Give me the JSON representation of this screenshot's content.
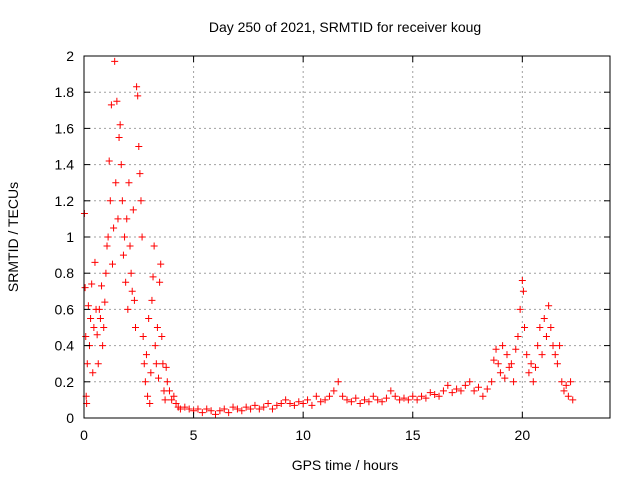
{
  "chart_data": {
    "type": "scatter",
    "title": "Day 250 of 2021, SRMTID for receiver koug",
    "xlabel": "GPS time / hours",
    "ylabel": "SRMTID / TECUs",
    "xlim": [
      0,
      24
    ],
    "ylim": [
      0,
      2
    ],
    "x_ticks": [
      0,
      5,
      10,
      15,
      20
    ],
    "x_tick_labels": [
      "0",
      "5",
      "10",
      "15",
      "20"
    ],
    "y_ticks": [
      0,
      0.2,
      0.4,
      0.6,
      0.8,
      1,
      1.2,
      1.4,
      1.6,
      1.8,
      2
    ],
    "y_tick_labels": [
      "0",
      "0.2",
      "0.4",
      "0.6",
      "0.8",
      "1",
      "1.2",
      "1.4",
      "1.6",
      "1.8",
      "2"
    ],
    "grid": true,
    "marker": "+",
    "color": "#ff0000",
    "series": [
      {
        "name": "SRMTID",
        "points": [
          [
            0.02,
            1.13
          ],
          [
            0.05,
            0.72
          ],
          [
            0.08,
            0.45
          ],
          [
            0.1,
            0.12
          ],
          [
            0.12,
            0.08
          ],
          [
            0.15,
            0.3
          ],
          [
            0.2,
            0.62
          ],
          [
            0.25,
            0.4
          ],
          [
            0.3,
            0.55
          ],
          [
            0.35,
            0.74
          ],
          [
            0.4,
            0.25
          ],
          [
            0.45,
            0.5
          ],
          [
            0.5,
            0.86
          ],
          [
            0.55,
            0.6
          ],
          [
            0.6,
            0.46
          ],
          [
            0.65,
            0.3
          ],
          [
            0.7,
            0.6
          ],
          [
            0.75,
            0.55
          ],
          [
            0.8,
            0.73
          ],
          [
            0.85,
            0.4
          ],
          [
            0.9,
            0.5
          ],
          [
            0.95,
            0.64
          ],
          [
            1.0,
            0.8
          ],
          [
            1.05,
            0.95
          ],
          [
            1.1,
            1.0
          ],
          [
            1.15,
            1.42
          ],
          [
            1.2,
            1.2
          ],
          [
            1.25,
            1.73
          ],
          [
            1.3,
            0.85
          ],
          [
            1.35,
            1.05
          ],
          [
            1.4,
            1.97
          ],
          [
            1.45,
            1.3
          ],
          [
            1.5,
            1.75
          ],
          [
            1.55,
            1.1
          ],
          [
            1.6,
            1.55
          ],
          [
            1.65,
            1.62
          ],
          [
            1.7,
            1.4
          ],
          [
            1.75,
            1.2
          ],
          [
            1.8,
            0.9
          ],
          [
            1.85,
            1.0
          ],
          [
            1.9,
            0.75
          ],
          [
            1.95,
            1.1
          ],
          [
            2.0,
            0.6
          ],
          [
            2.05,
            1.3
          ],
          [
            2.1,
            0.95
          ],
          [
            2.15,
            0.8
          ],
          [
            2.2,
            0.7
          ],
          [
            2.25,
            1.15
          ],
          [
            2.3,
            0.65
          ],
          [
            2.35,
            0.5
          ],
          [
            2.4,
            1.83
          ],
          [
            2.45,
            1.78
          ],
          [
            2.5,
            1.5
          ],
          [
            2.55,
            1.35
          ],
          [
            2.6,
            1.2
          ],
          [
            2.65,
            1.0
          ],
          [
            2.7,
            0.45
          ],
          [
            2.75,
            0.3
          ],
          [
            2.8,
            0.2
          ],
          [
            2.85,
            0.35
          ],
          [
            2.9,
            0.12
          ],
          [
            2.95,
            0.55
          ],
          [
            3.0,
            0.08
          ],
          [
            3.05,
            0.25
          ],
          [
            3.1,
            0.65
          ],
          [
            3.15,
            0.78
          ],
          [
            3.2,
            0.95
          ],
          [
            3.25,
            0.4
          ],
          [
            3.3,
            0.3
          ],
          [
            3.35,
            0.5
          ],
          [
            3.4,
            0.22
          ],
          [
            3.45,
            0.75
          ],
          [
            3.5,
            0.85
          ],
          [
            3.55,
            0.45
          ],
          [
            3.6,
            0.3
          ],
          [
            3.65,
            0.15
          ],
          [
            3.7,
            0.1
          ],
          [
            3.75,
            0.28
          ],
          [
            3.8,
            0.2
          ],
          [
            3.9,
            0.15
          ],
          [
            4.0,
            0.1
          ],
          [
            4.1,
            0.12
          ],
          [
            4.2,
            0.08
          ],
          [
            4.3,
            0.06
          ],
          [
            4.4,
            0.05
          ],
          [
            4.6,
            0.06
          ],
          [
            4.8,
            0.05
          ],
          [
            5.0,
            0.04
          ],
          [
            5.2,
            0.05
          ],
          [
            5.4,
            0.03
          ],
          [
            5.6,
            0.05
          ],
          [
            5.8,
            0.04
          ],
          [
            6.0,
            0.02
          ],
          [
            6.2,
            0.04
          ],
          [
            6.4,
            0.05
          ],
          [
            6.6,
            0.03
          ],
          [
            6.8,
            0.06
          ],
          [
            7.0,
            0.05
          ],
          [
            7.2,
            0.04
          ],
          [
            7.4,
            0.06
          ],
          [
            7.6,
            0.05
          ],
          [
            7.8,
            0.07
          ],
          [
            8.0,
            0.05
          ],
          [
            8.2,
            0.06
          ],
          [
            8.4,
            0.08
          ],
          [
            8.6,
            0.05
          ],
          [
            8.8,
            0.07
          ],
          [
            9.0,
            0.08
          ],
          [
            9.2,
            0.1
          ],
          [
            9.4,
            0.08
          ],
          [
            9.6,
            0.07
          ],
          [
            9.8,
            0.09
          ],
          [
            10.0,
            0.08
          ],
          [
            10.2,
            0.1
          ],
          [
            10.4,
            0.07
          ],
          [
            10.6,
            0.12
          ],
          [
            10.8,
            0.09
          ],
          [
            11.0,
            0.1
          ],
          [
            11.2,
            0.12
          ],
          [
            11.4,
            0.15
          ],
          [
            11.6,
            0.2
          ],
          [
            11.8,
            0.12
          ],
          [
            12.0,
            0.1
          ],
          [
            12.2,
            0.09
          ],
          [
            12.4,
            0.11
          ],
          [
            12.6,
            0.08
          ],
          [
            12.8,
            0.1
          ],
          [
            13.0,
            0.09
          ],
          [
            13.2,
            0.12
          ],
          [
            13.4,
            0.1
          ],
          [
            13.6,
            0.09
          ],
          [
            13.8,
            0.11
          ],
          [
            14.0,
            0.15
          ],
          [
            14.2,
            0.12
          ],
          [
            14.4,
            0.1
          ],
          [
            14.6,
            0.11
          ],
          [
            14.8,
            0.1
          ],
          [
            15.0,
            0.12
          ],
          [
            15.2,
            0.1
          ],
          [
            15.4,
            0.12
          ],
          [
            15.6,
            0.11
          ],
          [
            15.8,
            0.14
          ],
          [
            16.0,
            0.13
          ],
          [
            16.2,
            0.12
          ],
          [
            16.4,
            0.15
          ],
          [
            16.6,
            0.18
          ],
          [
            16.8,
            0.14
          ],
          [
            17.0,
            0.16
          ],
          [
            17.2,
            0.15
          ],
          [
            17.4,
            0.18
          ],
          [
            17.6,
            0.2
          ],
          [
            17.8,
            0.15
          ],
          [
            18.0,
            0.17
          ],
          [
            18.2,
            0.12
          ],
          [
            18.4,
            0.16
          ],
          [
            18.6,
            0.2
          ],
          [
            18.7,
            0.32
          ],
          [
            18.8,
            0.38
          ],
          [
            18.9,
            0.3
          ],
          [
            19.0,
            0.25
          ],
          [
            19.1,
            0.4
          ],
          [
            19.2,
            0.22
          ],
          [
            19.3,
            0.35
          ],
          [
            19.4,
            0.28
          ],
          [
            19.5,
            0.3
          ],
          [
            19.6,
            0.2
          ],
          [
            19.7,
            0.38
          ],
          [
            19.8,
            0.45
          ],
          [
            19.9,
            0.6
          ],
          [
            20.0,
            0.76
          ],
          [
            20.05,
            0.7
          ],
          [
            20.1,
            0.5
          ],
          [
            20.2,
            0.35
          ],
          [
            20.3,
            0.25
          ],
          [
            20.4,
            0.3
          ],
          [
            20.5,
            0.2
          ],
          [
            20.6,
            0.28
          ],
          [
            20.7,
            0.4
          ],
          [
            20.8,
            0.5
          ],
          [
            20.9,
            0.35
          ],
          [
            21.0,
            0.55
          ],
          [
            21.1,
            0.45
          ],
          [
            21.2,
            0.62
          ],
          [
            21.3,
            0.5
          ],
          [
            21.4,
            0.4
          ],
          [
            21.5,
            0.35
          ],
          [
            21.6,
            0.3
          ],
          [
            21.7,
            0.4
          ],
          [
            21.8,
            0.2
          ],
          [
            21.9,
            0.15
          ],
          [
            22.0,
            0.18
          ],
          [
            22.1,
            0.12
          ],
          [
            22.2,
            0.2
          ],
          [
            22.3,
            0.1
          ]
        ]
      }
    ]
  }
}
